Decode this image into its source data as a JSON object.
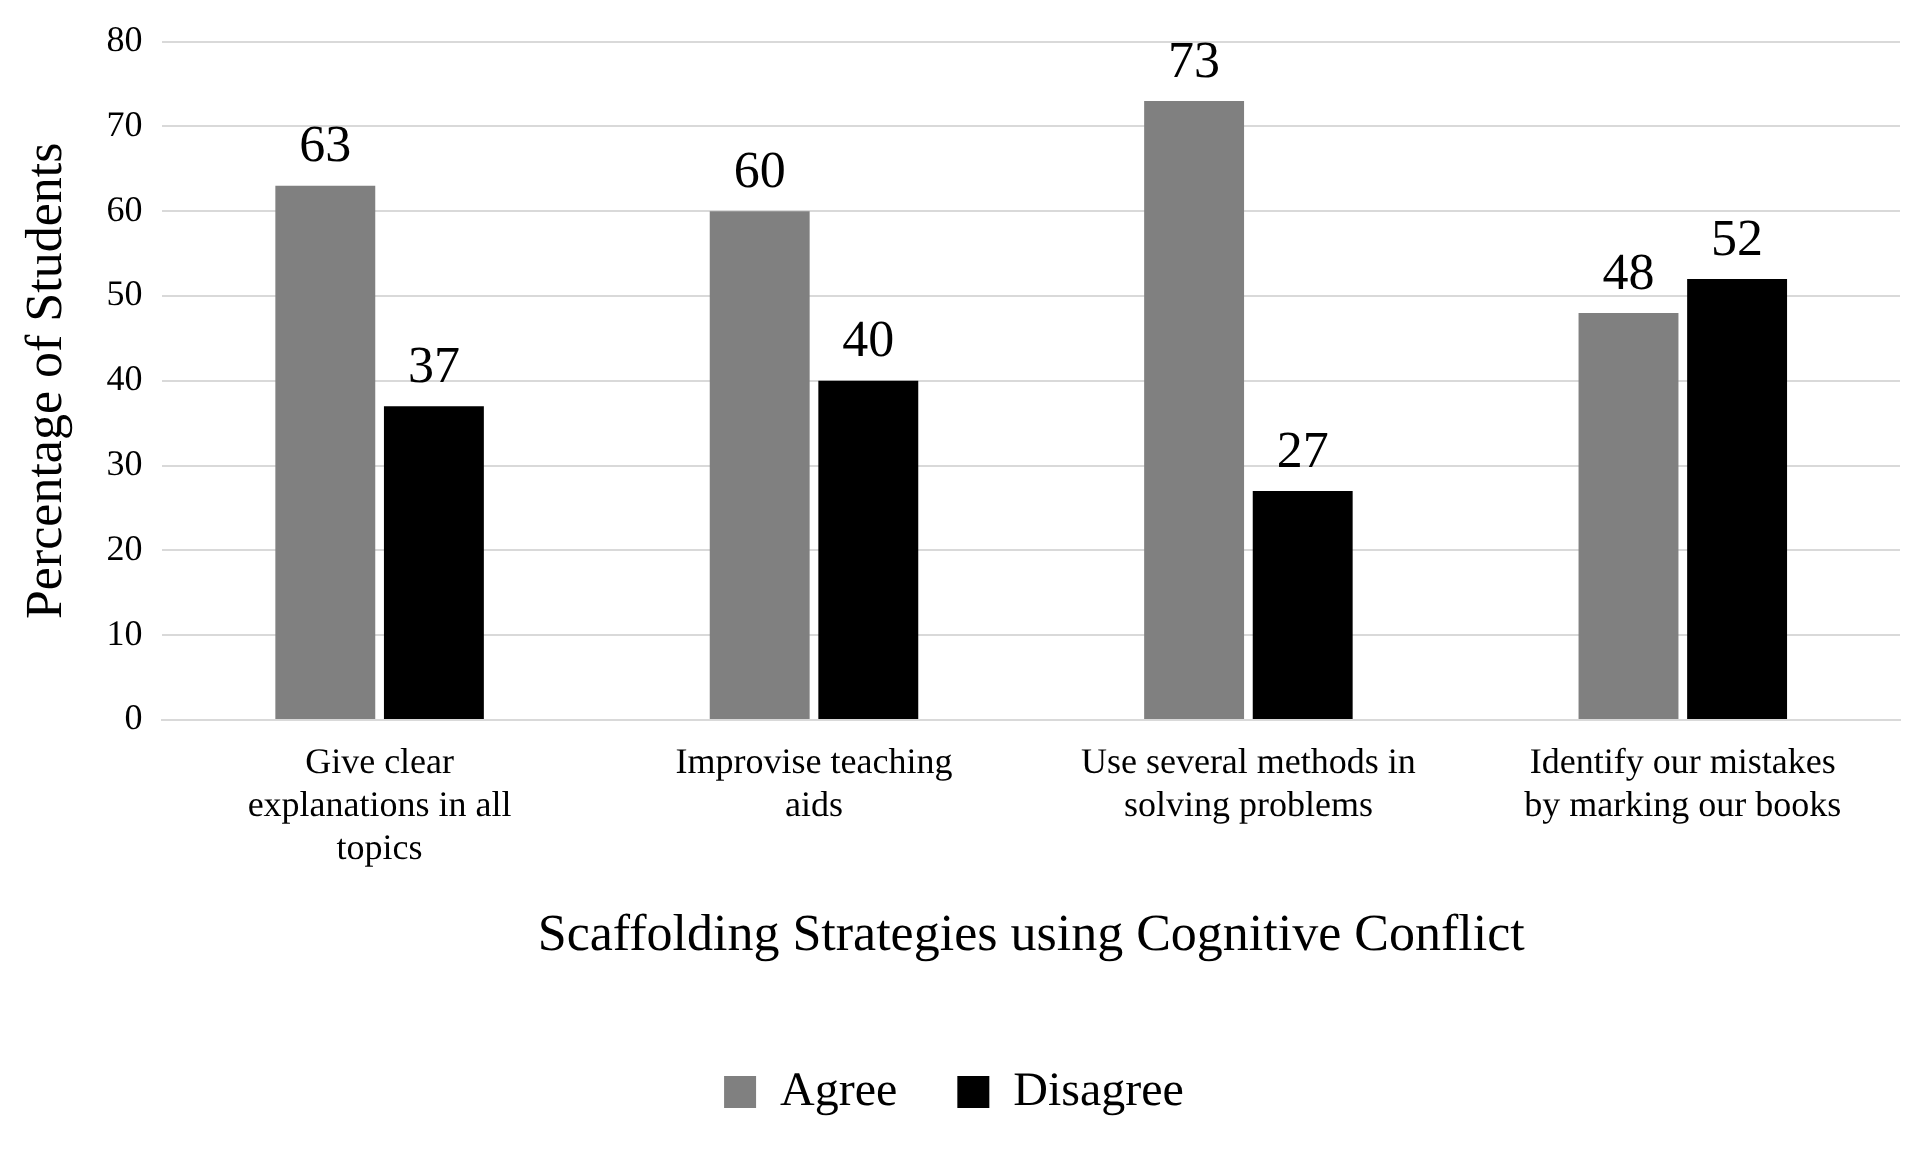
{
  "chart_data": {
    "type": "bar",
    "xlabel": "Scaffolding Strategies using Cognitive Conflict",
    "ylabel": "Percentage of Students",
    "categories": [
      "Give clear explanations in all topics",
      "Improvise teaching aids",
      "Use several methods in solving problems",
      "Identify our mistakes by marking our books"
    ],
    "series": [
      {
        "name": "Agree",
        "color": "#808080",
        "values": [
          63,
          60,
          73,
          48
        ]
      },
      {
        "name": "Disagree",
        "color": "#000000",
        "values": [
          37,
          40,
          27,
          52
        ]
      }
    ],
    "ylim": [
      0,
      80
    ],
    "yticks": [
      0,
      10,
      20,
      30,
      40,
      50,
      60,
      70,
      80
    ],
    "grid": "y",
    "legend": "bottom",
    "data_labels": true
  }
}
